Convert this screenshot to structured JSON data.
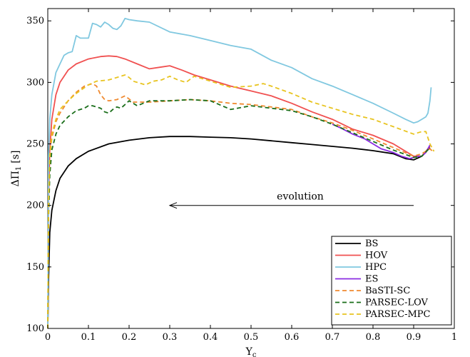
{
  "chart_data": {
    "type": "line",
    "title": "",
    "xlabel": "Y",
    "xlabel_sub": "c",
    "ylabel": "ΔΠ",
    "ylabel_sub": "1",
    "ylabel_unit": "[s]",
    "xlim": [
      0,
      1
    ],
    "ylim": [
      100,
      360
    ],
    "xticks": [
      "0",
      "0.1",
      "0.2",
      "0.3",
      "0.4",
      "0.5",
      "0.6",
      "0.7",
      "0.8",
      "0.9",
      "1"
    ],
    "yticks": [
      "100",
      "150",
      "200",
      "250",
      "300",
      "350"
    ],
    "grid": false,
    "legend_position": "bottom-right",
    "annotation": {
      "text": "evolution",
      "arrow_from": [
        0.9,
        200
      ],
      "arrow_to": [
        0.3,
        200
      ]
    },
    "series": [
      {
        "name": "BS",
        "color": "#000000",
        "dash": "solid",
        "x": [
          0,
          0.002,
          0.005,
          0.01,
          0.02,
          0.03,
          0.05,
          0.07,
          0.1,
          0.15,
          0.2,
          0.25,
          0.3,
          0.35,
          0.4,
          0.45,
          0.5,
          0.55,
          0.6,
          0.65,
          0.7,
          0.75,
          0.8,
          0.85,
          0.88,
          0.9,
          0.92,
          0.94
        ],
        "y": [
          100,
          140,
          178,
          196,
          212,
          222,
          232,
          238,
          244,
          250,
          253,
          255,
          256,
          256,
          255.5,
          255,
          254,
          252.5,
          251,
          249.5,
          248,
          246.5,
          244.5,
          242,
          238,
          237,
          240,
          247
        ]
      },
      {
        "name": "HOV",
        "color": "#f05050",
        "dash": "solid",
        "x": [
          0,
          0.002,
          0.005,
          0.01,
          0.02,
          0.03,
          0.05,
          0.07,
          0.1,
          0.13,
          0.15,
          0.17,
          0.19,
          0.22,
          0.25,
          0.28,
          0.3,
          0.33,
          0.36,
          0.4,
          0.45,
          0.5,
          0.55,
          0.6,
          0.65,
          0.7,
          0.75,
          0.8,
          0.85,
          0.9,
          0.92,
          0.94
        ],
        "y": [
          100,
          205,
          245,
          270,
          290,
          300,
          310,
          315,
          319,
          321,
          321.5,
          321,
          319,
          315,
          311,
          312.5,
          313.5,
          310,
          306,
          302,
          297,
          293,
          289,
          283,
          276,
          270,
          262,
          257,
          250,
          240,
          240,
          248
        ]
      },
      {
        "name": "HPC",
        "color": "#80c8e0",
        "dash": "solid",
        "x": [
          0,
          0.002,
          0.005,
          0.01,
          0.02,
          0.03,
          0.04,
          0.05,
          0.06,
          0.07,
          0.08,
          0.09,
          0.1,
          0.11,
          0.12,
          0.13,
          0.14,
          0.15,
          0.16,
          0.17,
          0.18,
          0.19,
          0.2,
          0.22,
          0.25,
          0.3,
          0.35,
          0.4,
          0.45,
          0.5,
          0.55,
          0.6,
          0.65,
          0.7,
          0.75,
          0.8,
          0.85,
          0.88,
          0.9,
          0.91,
          0.92,
          0.93,
          0.935,
          0.94,
          0.943
        ],
        "y": [
          100,
          240,
          270,
          290,
          308,
          315,
          322,
          324,
          325,
          338,
          336,
          336,
          336,
          348,
          347,
          345,
          349,
          347,
          344,
          343,
          346,
          352,
          351,
          350,
          349,
          341,
          338,
          334,
          330,
          327,
          318,
          312,
          303,
          297,
          290,
          283,
          275,
          270,
          267,
          268,
          270,
          272,
          275,
          285,
          296
        ]
      },
      {
        "name": "ES",
        "color": "#8a2be2",
        "dash": "solid",
        "x": [
          0.7,
          0.72,
          0.75,
          0.78,
          0.8,
          0.82,
          0.85,
          0.87,
          0.88,
          0.89,
          0.9,
          0.91,
          0.92,
          0.93,
          0.94
        ],
        "y": [
          266,
          263,
          258,
          254,
          250,
          246,
          243,
          240,
          239,
          238,
          239,
          240,
          240,
          243,
          249
        ]
      },
      {
        "name": "BaSTI-SC",
        "color": "#f08a30",
        "dash": "dashed",
        "x": [
          0,
          0.002,
          0.005,
          0.01,
          0.02,
          0.03,
          0.05,
          0.07,
          0.09,
          0.11,
          0.12,
          0.13,
          0.14,
          0.15,
          0.17,
          0.19,
          0.21,
          0.25,
          0.3,
          0.35,
          0.4,
          0.45,
          0.5,
          0.55,
          0.6,
          0.65,
          0.7,
          0.75,
          0.8,
          0.85,
          0.9,
          0.92,
          0.94,
          0.95
        ],
        "y": [
          100,
          200,
          238,
          255,
          268,
          275,
          285,
          292,
          297,
          299,
          297,
          290,
          286,
          285,
          286,
          289,
          284,
          284,
          285,
          286,
          285,
          283,
          282,
          280,
          278,
          272,
          267,
          261,
          254,
          247,
          240,
          242,
          246,
          243
        ]
      },
      {
        "name": "PARSEC-LOV",
        "color": "#1a6e1a",
        "dash": "dashed",
        "x": [
          0,
          0.002,
          0.005,
          0.01,
          0.02,
          0.03,
          0.05,
          0.07,
          0.09,
          0.1,
          0.11,
          0.12,
          0.13,
          0.14,
          0.15,
          0.16,
          0.17,
          0.18,
          0.2,
          0.22,
          0.25,
          0.3,
          0.35,
          0.4,
          0.45,
          0.5,
          0.55,
          0.6,
          0.65,
          0.7,
          0.75,
          0.8,
          0.85,
          0.9,
          0.92,
          0.94
        ],
        "y": [
          100,
          190,
          225,
          245,
          258,
          265,
          272,
          277,
          279,
          281,
          281,
          280,
          279,
          276,
          275,
          278,
          280,
          279,
          285,
          281,
          285,
          285,
          286,
          285,
          278,
          281,
          279,
          277,
          272,
          266,
          259,
          252,
          245,
          239,
          240,
          247
        ]
      },
      {
        "name": "PARSEC-MPC",
        "color": "#e8c420",
        "dash": "dashed",
        "x": [
          0,
          0.002,
          0.005,
          0.01,
          0.02,
          0.03,
          0.05,
          0.07,
          0.1,
          0.12,
          0.15,
          0.17,
          0.19,
          0.2,
          0.21,
          0.22,
          0.24,
          0.26,
          0.28,
          0.3,
          0.32,
          0.34,
          0.36,
          0.4,
          0.45,
          0.5,
          0.53,
          0.55,
          0.6,
          0.65,
          0.7,
          0.75,
          0.8,
          0.85,
          0.9,
          0.92,
          0.93,
          0.94,
          0.95
        ],
        "y": [
          100,
          205,
          240,
          258,
          270,
          278,
          285,
          291,
          298,
          301,
          302,
          304,
          306,
          304,
          301,
          300,
          298,
          301,
          302,
          305,
          302,
          300,
          305,
          301,
          296,
          297,
          299,
          297,
          291,
          284,
          279,
          274,
          270,
          264,
          258,
          260,
          260,
          250,
          244
        ]
      }
    ]
  }
}
